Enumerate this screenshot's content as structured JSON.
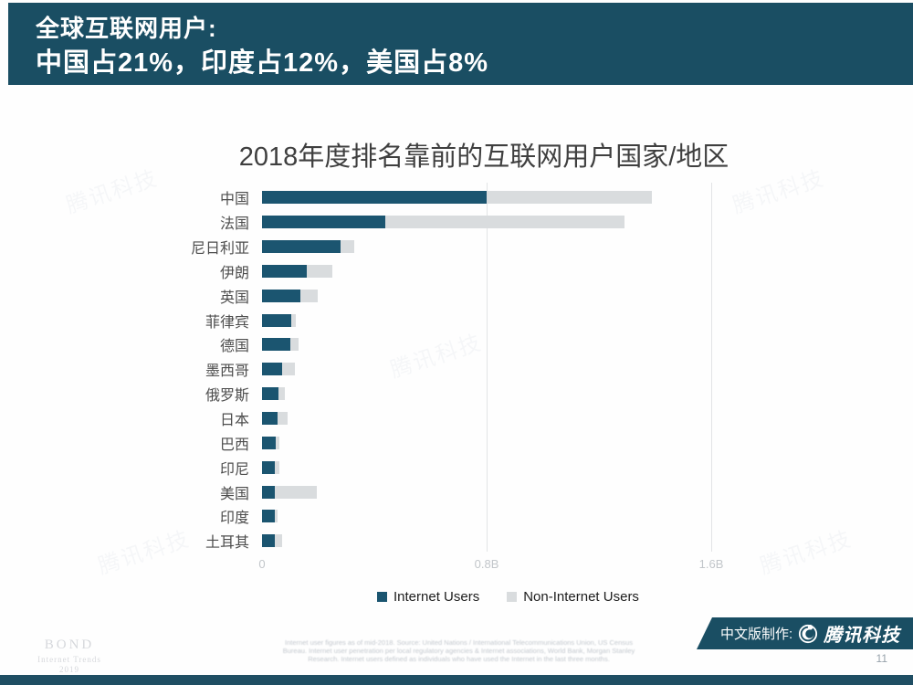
{
  "header": {
    "line1": "全球互联网用户:",
    "line2": "中国占21%，印度占12%，美国占8%"
  },
  "chart_data": {
    "type": "bar",
    "orientation": "horizontal",
    "stacked": true,
    "title": "2018年度排名靠前的互联网用户国家/地区",
    "categories": [
      "中国",
      "法国",
      "尼日利亚",
      "伊朗",
      "英国",
      "菲律宾",
      "德国",
      "墨西哥",
      "俄罗斯",
      "日本",
      "巴西",
      "印尼",
      "美国",
      "印度",
      "土耳其"
    ],
    "series": [
      {
        "name": "Internet Users",
        "color": "#1b5570",
        "values": [
          0.8,
          0.44,
          0.28,
          0.16,
          0.135,
          0.105,
          0.1,
          0.07,
          0.06,
          0.055,
          0.05,
          0.047,
          0.047,
          0.047,
          0.047
        ]
      },
      {
        "name": "Non-Internet Users",
        "color": "#d9dcde",
        "values": [
          0.59,
          0.85,
          0.05,
          0.09,
          0.065,
          0.015,
          0.03,
          0.048,
          0.02,
          0.036,
          0.012,
          0.015,
          0.148,
          0.008,
          0.025
        ]
      }
    ],
    "unit": "billions of people",
    "x_ticks": [
      "0",
      "0.8B",
      "1.6B"
    ],
    "x_tick_values": [
      0,
      0.8,
      1.6
    ],
    "xlim": [
      0,
      1.6
    ],
    "grid": "vertical",
    "legend_position": "bottom"
  },
  "footer": {
    "bond": {
      "line1": "BOND",
      "line2": "Internet Trends",
      "line3": "2019"
    },
    "source_note": {
      "line1": "Internet user figures as of mid-2018. Source: United Nations / International Telecommunications Union, US Census",
      "line2": "Bureau. Internet user penetration per local regulatory agencies & Internet associations, World Bank, Morgan Stanley",
      "line3": "Research. Internet users defined as individuals who have used the Internet in the last three months."
    },
    "tencent": {
      "prefix": "中文版制作:",
      "brand": "腾讯科技"
    },
    "page_number": "11"
  },
  "watermark": {
    "text": "腾讯科技"
  },
  "colors": {
    "banner_bg": "#1a4e63",
    "bar_internet": "#1b5570",
    "bar_non_internet": "#d9dcde",
    "gridline": "#e3e4e6",
    "axis_label": "#c2c6ca",
    "title_text": "#3f3f3f",
    "category_label": "#4d4d4d"
  }
}
